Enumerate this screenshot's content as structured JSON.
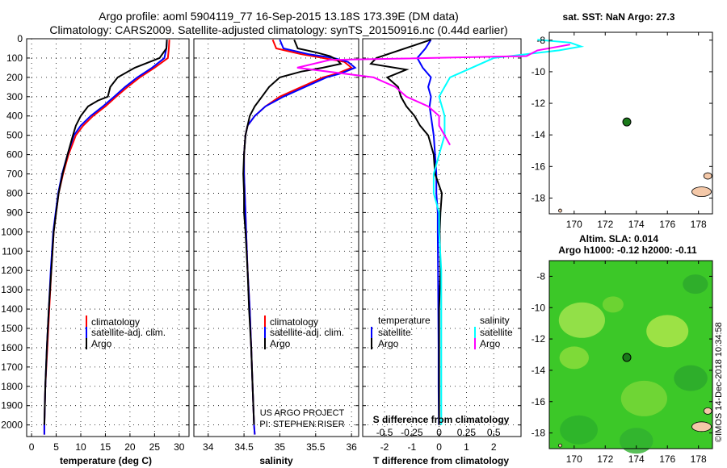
{
  "header": {
    "line1": "Argo profile: aoml 5904119_77 16-Sep-2015 13.18S 173.39E (DM data)",
    "line2": "Climatology: CARS2009. Satellite-adjusted climatology: synTS_20150916.nc (0.44d earlier)"
  },
  "colors": {
    "climatology": "#ff0000",
    "satellite": "#0000ff",
    "argo": "#000000",
    "sal_satellite": "#00ffff",
    "sal_argo": "#ff00ff",
    "land": "#f4c8a8",
    "ocean_map": "#3cc828",
    "marker": "#1a7a1a"
  },
  "depth_ticks": [
    "0",
    "100",
    "200",
    "300",
    "400",
    "500",
    "600",
    "700",
    "800",
    "900",
    "1000",
    "1100",
    "1200",
    "1300",
    "1400",
    "1500",
    "1600",
    "1700",
    "1800",
    "1900",
    "2000"
  ],
  "chart_data": [
    {
      "type": "line",
      "name": "temperature",
      "xlabel": "temperature (deg C)",
      "xlim": [
        -1,
        32
      ],
      "ylim": [
        2060,
        0
      ],
      "xticks": [
        0,
        5,
        10,
        15,
        20,
        25,
        30
      ],
      "legend": [
        "climatology",
        "satellite-adj. clim.",
        "Argo"
      ],
      "series": [
        {
          "name": "climatology",
          "color": "#ff0000",
          "depth": [
            5,
            50,
            100,
            150,
            200,
            250,
            300,
            350,
            400,
            450,
            500,
            600,
            700,
            800,
            900,
            1000,
            1200,
            1400,
            1600,
            1800,
            2000,
            2050
          ],
          "values": [
            28.0,
            27.9,
            27.7,
            25.0,
            22.0,
            19.5,
            17.2,
            15.0,
            12.5,
            10.5,
            9.0,
            7.5,
            6.4,
            5.5,
            5.0,
            4.5,
            4.0,
            3.6,
            3.2,
            2.8,
            2.6,
            2.6
          ]
        },
        {
          "name": "satellite-adj. clim.",
          "color": "#0000ff",
          "depth": [
            5,
            50,
            100,
            150,
            200,
            250,
            300,
            350,
            400,
            450,
            500,
            600,
            700,
            800,
            900,
            1000,
            1200,
            1400,
            1600,
            1800,
            2000,
            2050
          ],
          "values": [
            27.5,
            27.4,
            27.0,
            24.5,
            21.5,
            19.0,
            16.8,
            14.5,
            12.0,
            10.0,
            8.6,
            7.3,
            6.2,
            5.4,
            4.9,
            4.4,
            3.9,
            3.5,
            3.1,
            2.8,
            2.6,
            2.6
          ]
        },
        {
          "name": "Argo",
          "color": "#000000",
          "depth": [
            5,
            50,
            100,
            150,
            200,
            250,
            300,
            320,
            350,
            400,
            450,
            500,
            600,
            700,
            800,
            900,
            1000,
            1200,
            1400,
            1600,
            1800,
            2000
          ],
          "values": [
            27.5,
            27.4,
            26.0,
            21.0,
            17.5,
            16.0,
            15.5,
            13.5,
            11.5,
            10.0,
            9.0,
            8.4,
            7.3,
            6.3,
            5.5,
            5.0,
            4.5,
            4.0,
            3.5,
            3.1,
            2.8,
            2.6
          ]
        }
      ]
    },
    {
      "type": "line",
      "name": "salinity",
      "xlabel": "salinity",
      "xlim": [
        33.8,
        36.1
      ],
      "ylim": [
        2060,
        0
      ],
      "xticks": [
        34,
        34.5,
        35,
        35.5,
        36
      ],
      "legend": [
        "climatology",
        "satellite-adj. clim.",
        "Argo"
      ],
      "credit": [
        "US ARGO PROJECT",
        "PI: STEPHEN RISER"
      ],
      "series": [
        {
          "name": "climatology",
          "color": "#ff0000",
          "depth": [
            5,
            50,
            80,
            100,
            120,
            150,
            180,
            200,
            250,
            300,
            350,
            400,
            450,
            500,
            600,
            700,
            800,
            900,
            1000,
            1200,
            1400,
            1600,
            1800,
            2000,
            2050
          ],
          "values": [
            34.9,
            34.95,
            35.3,
            35.6,
            35.9,
            36.0,
            35.8,
            35.6,
            35.3,
            35.0,
            34.8,
            34.65,
            34.55,
            34.52,
            34.5,
            34.5,
            34.51,
            34.52,
            34.53,
            34.55,
            34.58,
            34.6,
            34.62,
            34.64,
            34.65
          ]
        },
        {
          "name": "satellite-adj. clim.",
          "color": "#0000ff",
          "depth": [
            5,
            50,
            80,
            100,
            120,
            150,
            180,
            200,
            250,
            300,
            350,
            400,
            450,
            500,
            600,
            700,
            800,
            900,
            1000,
            1200,
            1400,
            1600,
            1800,
            2000,
            2050
          ],
          "values": [
            35.0,
            35.05,
            35.4,
            35.75,
            35.95,
            36.05,
            35.85,
            35.65,
            35.35,
            35.05,
            34.8,
            34.65,
            34.55,
            34.52,
            34.5,
            34.5,
            34.51,
            34.52,
            34.53,
            34.55,
            34.58,
            34.6,
            34.62,
            34.64,
            34.65
          ]
        },
        {
          "name": "Argo",
          "color": "#000000",
          "depth": [
            5,
            50,
            70,
            90,
            110,
            130,
            150,
            170,
            200,
            250,
            300,
            350,
            400,
            450,
            500,
            600,
            700,
            800,
            900,
            1000,
            1200,
            1400,
            1600,
            1800,
            2000
          ],
          "values": [
            35.2,
            35.25,
            35.5,
            35.7,
            35.8,
            35.85,
            35.6,
            35.3,
            35.0,
            34.85,
            34.75,
            34.65,
            34.58,
            34.55,
            34.52,
            34.5,
            34.49,
            34.5,
            34.5,
            34.52,
            34.55,
            34.57,
            34.6,
            34.62,
            34.64
          ]
        }
      ]
    },
    {
      "type": "line",
      "name": "difference",
      "xlabel": "T difference from climatology",
      "xlim": [
        -2.8,
        3.0
      ],
      "ylim": [
        2060,
        0
      ],
      "xticks": [
        -2,
        -1,
        0,
        1,
        2
      ],
      "sticks": [
        "-0.5",
        "-0.25",
        "0",
        "0.25",
        "0.5"
      ],
      "sdiff_title": "S difference from climatology",
      "legend_left_title": "temperature",
      "legend_right_title": "salinity",
      "legend_left": [
        "satellite",
        "Argo"
      ],
      "legend_right": [
        "satellite",
        "Argo"
      ],
      "series": [
        {
          "name": "T satellite",
          "color": "#0000ff",
          "depth": [
            5,
            50,
            100,
            150,
            200,
            250,
            300,
            350,
            400,
            500,
            600,
            700,
            800,
            900,
            1000,
            1200,
            1400,
            1600,
            1800,
            2000
          ],
          "values": [
            -0.3,
            -0.5,
            -0.8,
            -0.6,
            -0.3,
            -0.4,
            -0.3,
            -0.35,
            -0.3,
            -0.2,
            -0.15,
            -0.1,
            -0.1,
            -0.05,
            -0.05,
            -0.04,
            -0.03,
            -0.02,
            -0.02,
            -0.01
          ]
        },
        {
          "name": "T Argo",
          "color": "#000000",
          "depth": [
            5,
            100,
            130,
            160,
            200,
            250,
            300,
            350,
            400,
            450,
            500,
            600,
            700,
            800,
            900,
            1000,
            1200,
            1400,
            1600,
            1800,
            2000
          ],
          "values": [
            -0.3,
            -2.3,
            -2.5,
            -1.2,
            -1.9,
            -1.5,
            -1.4,
            -1.2,
            -0.9,
            -0.7,
            -0.4,
            -0.2,
            -0.15,
            0.1,
            0.05,
            0.02,
            0.05,
            0.0,
            0.0,
            0.0,
            0.0
          ]
        },
        {
          "name": "S satellite",
          "color": "#00ffff",
          "depth": [
            5,
            20,
            40,
            60,
            80,
            100,
            150,
            200,
            300,
            400,
            500,
            600,
            700,
            800,
            900,
            1000,
            1200,
            1400,
            1600,
            1800,
            2000
          ],
          "values": [
            0.9,
            1.2,
            1.3,
            1.1,
            0.8,
            0.5,
            0.3,
            0.1,
            0.0,
            0.05,
            0.05,
            0.0,
            -0.05,
            -0.05,
            0.0,
            0.0,
            0.02,
            0.02,
            0.02,
            0.02,
            0.02
          ]
        },
        {
          "name": "S Argo",
          "color": "#ff00ff",
          "depth": [
            30,
            60,
            90,
            110,
            150,
            200,
            250,
            300,
            350,
            400,
            450,
            500,
            550
          ],
          "values": [
            1.2,
            0.9,
            0.8,
            -1.0,
            -1.3,
            -0.6,
            -0.4,
            -0.3,
            -0.1,
            0.0,
            0.0,
            0.05,
            0.1
          ]
        }
      ]
    },
    {
      "type": "scatter",
      "name": "sst-map",
      "title": "sat. SST: NaN Argo: 27.3",
      "xlim": [
        168.4,
        178.9
      ],
      "ylim": [
        -19.0,
        -7.5
      ],
      "xticks": [
        170,
        172,
        174,
        176,
        178
      ],
      "yticks": [
        -8,
        -10,
        -12,
        -14,
        -16,
        -18
      ],
      "points": [
        {
          "lon": 173.39,
          "lat": -13.18
        }
      ]
    },
    {
      "type": "heatmap",
      "name": "sla-map",
      "title_line1": "Altim. SLA: 0.014",
      "title_line2": "Argo h1000: -0.12 h2000: -0.11",
      "credit": "©IMOS 14-Dec-2018 10:34:58",
      "xlim": [
        168.4,
        178.9
      ],
      "ylim": [
        -19.0,
        -7.0
      ],
      "xticks": [
        170,
        172,
        174,
        176,
        178
      ],
      "yticks": [
        -8,
        -10,
        -12,
        -14,
        -16,
        -18
      ],
      "points": [
        {
          "lon": 173.39,
          "lat": -13.18
        }
      ]
    }
  ]
}
